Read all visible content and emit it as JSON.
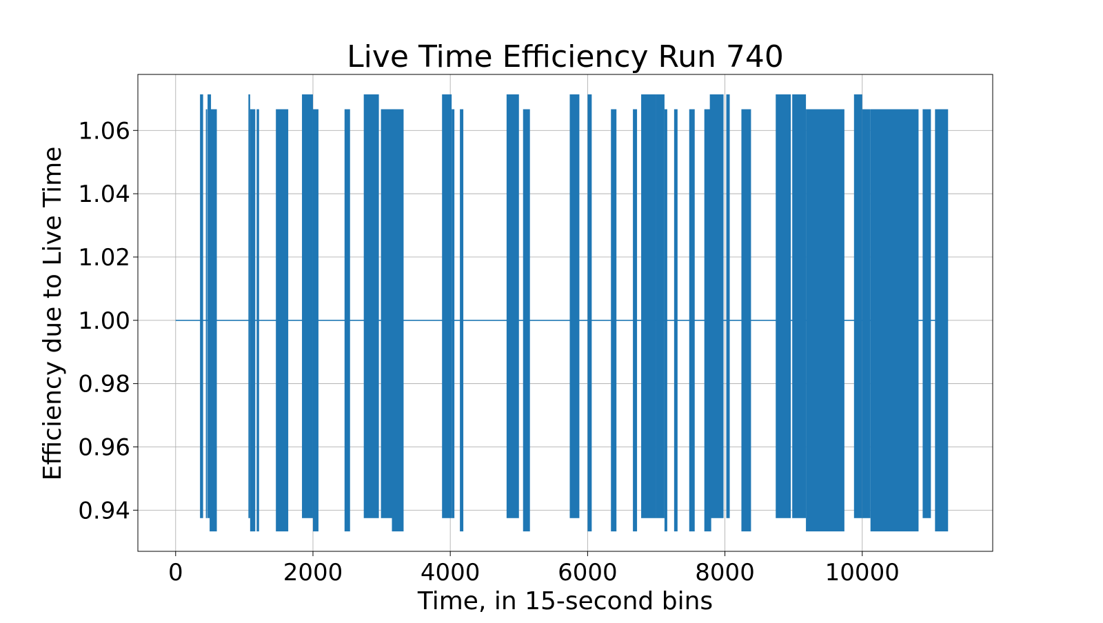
{
  "chart_data": {
    "type": "line",
    "title": "Live Time Efficiency Run 740",
    "xlabel": "Time, in 15-second bins",
    "ylabel": "Efficiency due to Live Time",
    "xlim": [
      -550,
      11900
    ],
    "ylim": [
      0.927,
      1.0777
    ],
    "xticks": [
      0,
      2000,
      4000,
      6000,
      8000,
      10000
    ],
    "xtick_labels": [
      "0",
      "2000",
      "4000",
      "6000",
      "8000",
      "10000"
    ],
    "yticks": [
      0.94,
      0.96,
      0.98,
      1.0,
      1.02,
      1.04,
      1.06
    ],
    "ytick_labels": [
      "0.94",
      "0.96",
      "0.98",
      "1.00",
      "1.02",
      "1.04",
      "1.06"
    ],
    "grid": true,
    "color": "#1f77b4",
    "baseline": {
      "x_start": 0,
      "x_end": 11250,
      "value": 1.0
    },
    "oscillation_levels": {
      "high": [
        1.0714,
        1.0667
      ],
      "low": [
        0.9375,
        0.9333
      ]
    },
    "bursts": [
      {
        "x_start": 355,
        "x_end": 400,
        "high": 1.0714,
        "low": 0.9375
      },
      {
        "x_start": 440,
        "x_end": 460,
        "high": 1.0667,
        "low": 0.9375
      },
      {
        "x_start": 465,
        "x_end": 515,
        "high": 1.0714,
        "low": 0.9375
      },
      {
        "x_start": 495,
        "x_end": 600,
        "high": 1.0667,
        "low": 0.9333
      },
      {
        "x_start": 1060,
        "x_end": 1085,
        "high": 1.0714,
        "low": 0.9375
      },
      {
        "x_start": 1085,
        "x_end": 1160,
        "high": 1.0667,
        "low": 0.9333
      },
      {
        "x_start": 1180,
        "x_end": 1215,
        "high": 1.0667,
        "low": 0.9333
      },
      {
        "x_start": 1460,
        "x_end": 1640,
        "high": 1.0667,
        "low": 0.9333
      },
      {
        "x_start": 1840,
        "x_end": 2000,
        "high": 1.0714,
        "low": 0.9375
      },
      {
        "x_start": 2000,
        "x_end": 2080,
        "high": 1.0667,
        "low": 0.9333
      },
      {
        "x_start": 2460,
        "x_end": 2540,
        "high": 1.0667,
        "low": 0.9333
      },
      {
        "x_start": 2740,
        "x_end": 2960,
        "high": 1.0714,
        "low": 0.9375
      },
      {
        "x_start": 2990,
        "x_end": 3200,
        "high": 1.0667,
        "low": 0.9375
      },
      {
        "x_start": 3150,
        "x_end": 3320,
        "high": 1.0667,
        "low": 0.9333
      },
      {
        "x_start": 3880,
        "x_end": 4020,
        "high": 1.0714,
        "low": 0.9375
      },
      {
        "x_start": 4020,
        "x_end": 4060,
        "high": 1.0667,
        "low": 0.9375
      },
      {
        "x_start": 4140,
        "x_end": 4190,
        "high": 1.0667,
        "low": 0.9333
      },
      {
        "x_start": 4820,
        "x_end": 5000,
        "high": 1.0714,
        "low": 0.9375
      },
      {
        "x_start": 5060,
        "x_end": 5160,
        "high": 1.0667,
        "low": 0.9333
      },
      {
        "x_start": 5740,
        "x_end": 5880,
        "high": 1.0714,
        "low": 0.9375
      },
      {
        "x_start": 6000,
        "x_end": 6060,
        "high": 1.0714,
        "low": 0.9333
      },
      {
        "x_start": 6340,
        "x_end": 6420,
        "high": 1.0667,
        "low": 0.9333
      },
      {
        "x_start": 6660,
        "x_end": 6720,
        "high": 1.0667,
        "low": 0.9333
      },
      {
        "x_start": 6780,
        "x_end": 7000,
        "high": 1.0714,
        "low": 0.9375
      },
      {
        "x_start": 7000,
        "x_end": 7120,
        "high": 1.0714,
        "low": 0.9375
      },
      {
        "x_start": 7120,
        "x_end": 7160,
        "high": 1.0667,
        "low": 0.9333
      },
      {
        "x_start": 7260,
        "x_end": 7310,
        "high": 1.0667,
        "low": 0.9333
      },
      {
        "x_start": 7480,
        "x_end": 7560,
        "high": 1.0667,
        "low": 0.9333
      },
      {
        "x_start": 7700,
        "x_end": 7800,
        "high": 1.0667,
        "low": 0.9333
      },
      {
        "x_start": 7780,
        "x_end": 7980,
        "high": 1.0714,
        "low": 0.9375
      },
      {
        "x_start": 8020,
        "x_end": 8070,
        "high": 1.0714,
        "low": 0.9375
      },
      {
        "x_start": 8240,
        "x_end": 8380,
        "high": 1.0667,
        "low": 0.9333
      },
      {
        "x_start": 8740,
        "x_end": 8960,
        "high": 1.0714,
        "low": 0.9375
      },
      {
        "x_start": 8980,
        "x_end": 9180,
        "high": 1.0714,
        "low": 0.9375
      },
      {
        "x_start": 9180,
        "x_end": 9740,
        "high": 1.0667,
        "low": 0.9333
      },
      {
        "x_start": 9880,
        "x_end": 10000,
        "high": 1.0714,
        "low": 0.9375
      },
      {
        "x_start": 10000,
        "x_end": 10120,
        "high": 1.0667,
        "low": 0.9375
      },
      {
        "x_start": 10120,
        "x_end": 10820,
        "high": 1.0667,
        "low": 0.9333
      },
      {
        "x_start": 10880,
        "x_end": 11000,
        "high": 1.0667,
        "low": 0.9375
      },
      {
        "x_start": 11060,
        "x_end": 11250,
        "high": 1.0667,
        "low": 0.9333
      }
    ]
  }
}
